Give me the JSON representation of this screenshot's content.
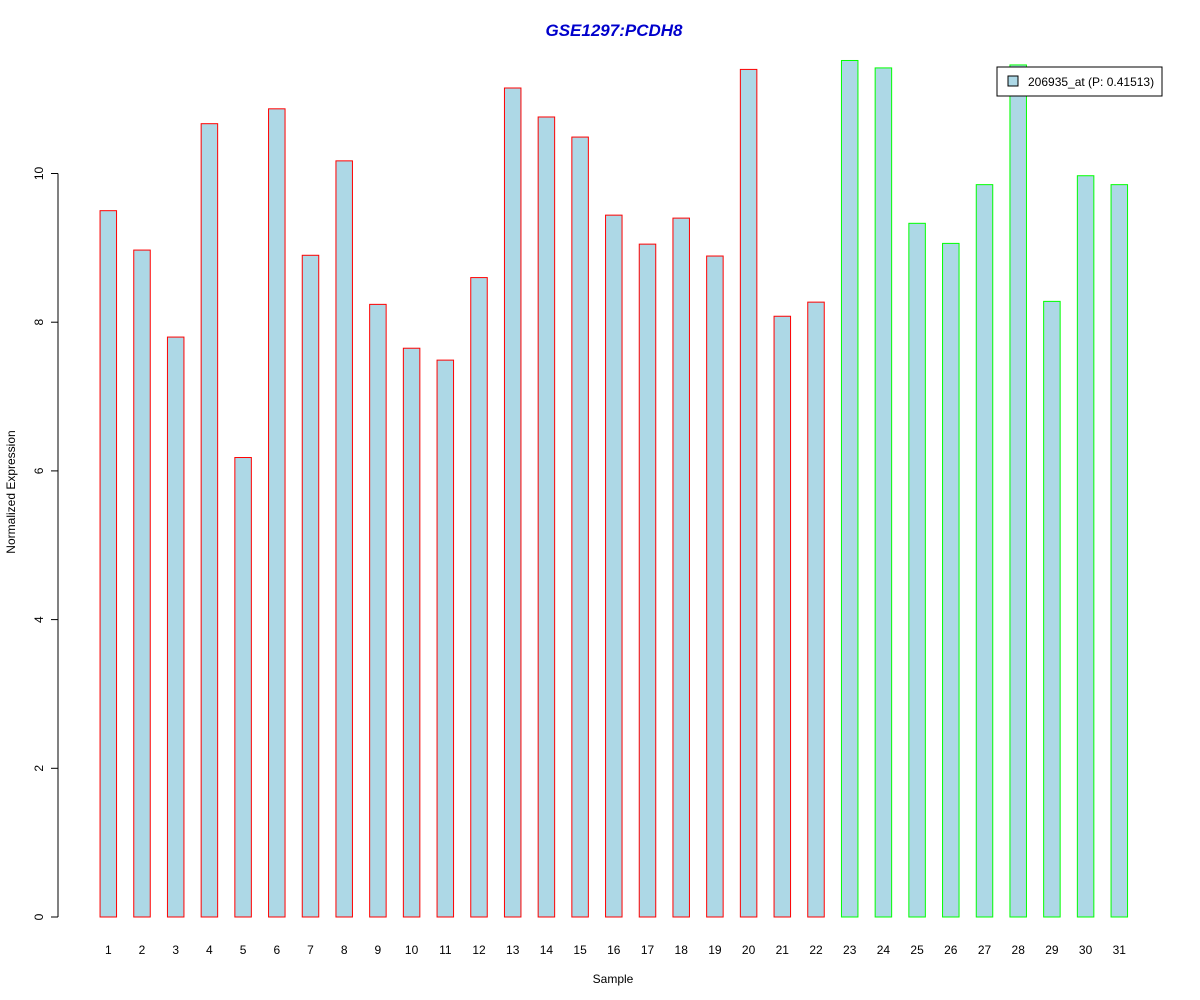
{
  "chart_data": {
    "type": "bar",
    "title": "GSE1297:PCDH8",
    "xlabel": "Sample",
    "ylabel": "Normalized Expression",
    "ylim": [
      0,
      11.6
    ],
    "yticks": [
      0,
      2,
      4,
      6,
      8,
      10
    ],
    "grid": false,
    "categories": [
      "1",
      "2",
      "3",
      "4",
      "5",
      "6",
      "7",
      "8",
      "9",
      "10",
      "11",
      "12",
      "13",
      "14",
      "15",
      "16",
      "17",
      "18",
      "19",
      "20",
      "21",
      "22",
      "23",
      "24",
      "25",
      "26",
      "27",
      "28",
      "29",
      "30",
      "31"
    ],
    "values": [
      9.5,
      8.97,
      7.8,
      10.67,
      6.18,
      10.87,
      8.9,
      10.17,
      8.24,
      7.65,
      7.49,
      8.6,
      11.15,
      10.76,
      10.49,
      9.44,
      9.05,
      9.4,
      8.89,
      11.4,
      8.08,
      8.27,
      11.52,
      11.42,
      9.33,
      9.06,
      9.85,
      11.46,
      8.28,
      9.97,
      9.85
    ],
    "fill_color": "#add8e6",
    "group_border_colors": [
      "#ff0000",
      "#ff0000",
      "#ff0000",
      "#ff0000",
      "#ff0000",
      "#ff0000",
      "#ff0000",
      "#ff0000",
      "#ff0000",
      "#ff0000",
      "#ff0000",
      "#ff0000",
      "#ff0000",
      "#ff0000",
      "#ff0000",
      "#ff0000",
      "#ff0000",
      "#ff0000",
      "#ff0000",
      "#ff0000",
      "#ff0000",
      "#ff0000",
      "#00ff00",
      "#00ff00",
      "#00ff00",
      "#00ff00",
      "#00ff00",
      "#00ff00",
      "#00ff00",
      "#00ff00",
      "#00ff00"
    ],
    "title_color": "#0000cc",
    "legend": {
      "placement": "top-right",
      "label": "206935_at (P: 0.41513)"
    }
  }
}
